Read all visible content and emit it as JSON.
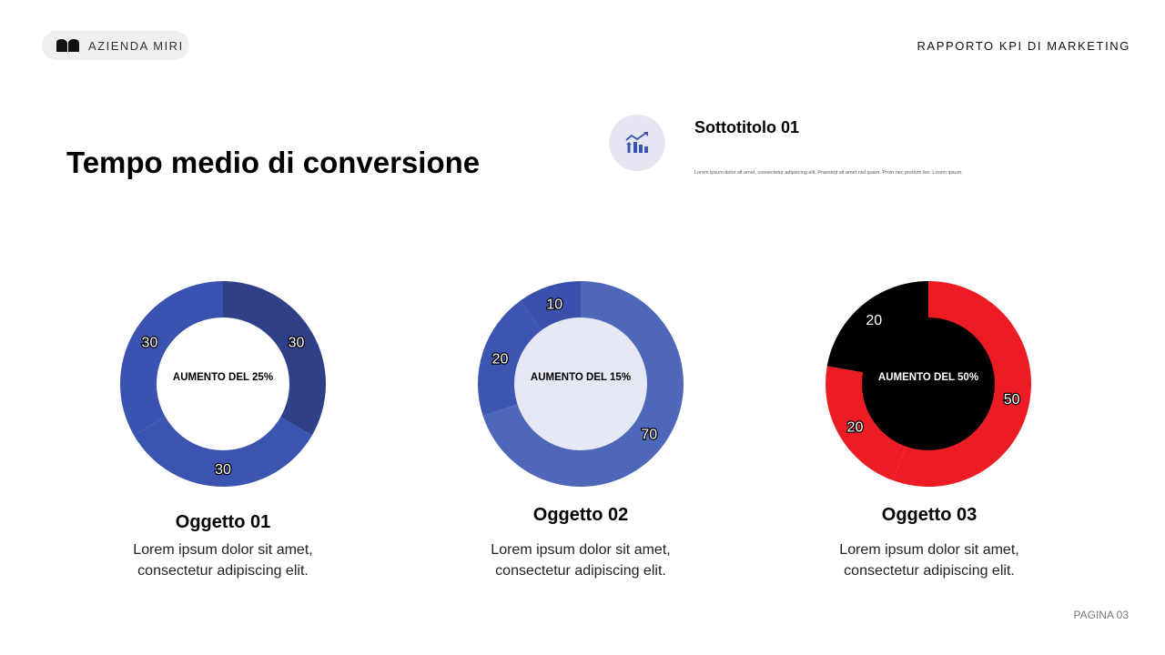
{
  "header": {
    "brand": "AZIENDA MIRI",
    "report": "RAPPORTO KPI DI MARKETING"
  },
  "title": "Tempo medio di conversione",
  "subtitle": {
    "heading": "Sottotitolo 01",
    "text": "Lorem ipsum dolor sit amet, consectetur adipiscing elit. Praesent sit amet nisl quam. Proin nec pretium leo. Lorem ipsum.",
    "icon": "chart-growth-icon"
  },
  "items": [
    {
      "name": "Oggetto 01",
      "desc1": "Lorem ipsum dolor sit amet,",
      "desc2": "consectetur adipiscing elit."
    },
    {
      "name": "Oggetto 02",
      "desc1": "Lorem ipsum dolor sit amet,",
      "desc2": "consectetur adipiscing elit."
    },
    {
      "name": "Oggetto 03",
      "desc1": "Lorem ipsum dolor sit amet,",
      "desc2": "consectetur adipiscing elit."
    }
  ],
  "chart_data": [
    {
      "type": "pie",
      "style": "donut",
      "center_label": "AUMENTO DEL 25%",
      "center_fill": "#ffffff",
      "center_text_color": "#000000",
      "values": [
        30,
        30,
        30
      ],
      "colors": [
        "#2f3f88",
        "#3a54af",
        "#3b53b0"
      ]
    },
    {
      "type": "pie",
      "style": "donut",
      "center_label": "AUMENTO DEL 15%",
      "center_fill": "#e6e8f5",
      "center_text_color": "#000000",
      "values": [
        70,
        20,
        10
      ],
      "colors": [
        "#4e67b8",
        "#3c55b0",
        "#3a50aa"
      ]
    },
    {
      "type": "pie",
      "style": "donut",
      "center_label": "AUMENTO DEL 50%",
      "center_fill": "#000000",
      "center_text_color": "#ffffff",
      "values": [
        50,
        20,
        20
      ],
      "colors": [
        "#ed1c24",
        "#ed1c24",
        "#000000"
      ]
    }
  ],
  "footer": {
    "page": "PAGINA 03"
  }
}
